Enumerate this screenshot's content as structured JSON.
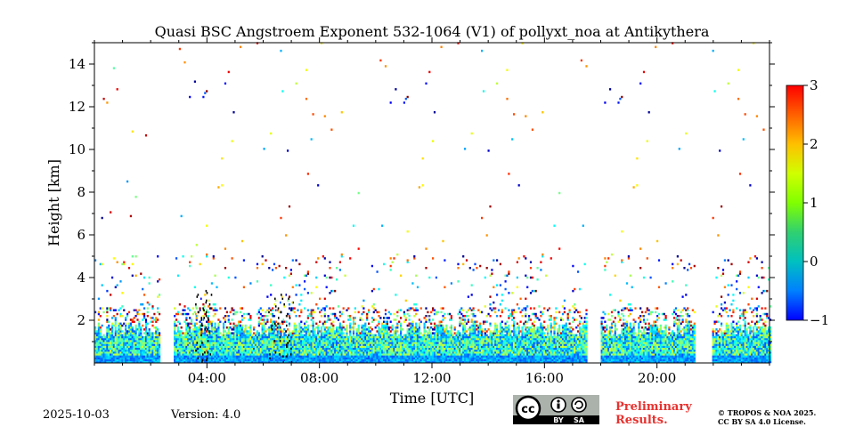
{
  "chart_data": {
    "type": "heatmap",
    "title": "Quasi BSC Angstroem Exponent 532-1064 (V1) of pollyxt_noa at Antikythera",
    "xlabel": "Time [UTC]",
    "ylabel": "Height [km]",
    "xlim": [
      0,
      24
    ],
    "ylim": [
      0,
      15
    ],
    "x_ticks": [
      4,
      8,
      12,
      16,
      20
    ],
    "x_tick_labels": [
      "04:00",
      "08:00",
      "12:00",
      "16:00",
      "20:00"
    ],
    "y_ticks": [
      2,
      4,
      6,
      8,
      10,
      12,
      14
    ],
    "y_tick_labels": [
      "2",
      "4",
      "6",
      "8",
      "10",
      "12",
      "14"
    ],
    "colorbar": {
      "range": [
        -1,
        3
      ],
      "ticks": [
        -1,
        0,
        1,
        2,
        3
      ],
      "tick_labels": [
        "−1",
        "0",
        "1",
        "2",
        "3"
      ],
      "colormap": "jet"
    },
    "data_gaps_utc": [
      [
        2.3,
        2.8
      ],
      [
        17.5,
        18.0
      ],
      [
        21.3,
        21.9
      ]
    ],
    "low_layer_top_km": 1.6,
    "low_layer_typical_value": 0.6
  },
  "footer": {
    "date": "2025-10-03",
    "version": "Version: 4.0",
    "preliminary_line1": "Preliminary",
    "preliminary_line2": "Results.",
    "copyright_line1": "© TROPOS & NOA 2025.",
    "copyright_line2": "CC BY SA 4.0 License.",
    "license_badge": {
      "cc": "cc",
      "by": "BY",
      "sa": "SA"
    }
  },
  "colors": {
    "prelim": "#e8322f",
    "badge_bg": "#aab2ab",
    "badge_bottom": "#000000"
  }
}
